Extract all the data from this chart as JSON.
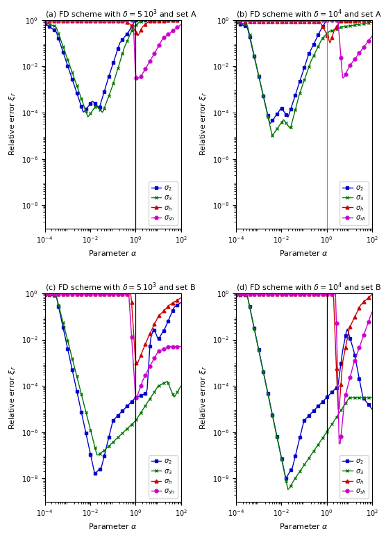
{
  "titles": [
    "(a) FD scheme with $\\delta = 5\\,10^3$ and set A",
    "(b) FD scheme with $\\delta = 10^4$ and set A",
    "(c) FD scheme with $\\delta = 5\\,10^3$ and set B",
    "(d) FD scheme with $\\delta = 10^4$ and set B"
  ],
  "xlabel": "Parameter $\\alpha$",
  "ylabel": "Relative error $\\xi_r$",
  "xlim_log": [
    -4,
    2
  ],
  "ylim_log": [
    -9,
    0
  ],
  "vline_x": 1.0,
  "legend_labels": [
    "$\\sigma_2$",
    "$\\sigma_3$",
    "$\\sigma_h$",
    "$\\sigma_{sh}$"
  ],
  "colors": [
    "#0000cc",
    "#007700",
    "#cc0000",
    "#cc00cc"
  ],
  "markers": [
    "s",
    "x",
    "^",
    "o"
  ],
  "markersize": 3.5,
  "markevery": 5,
  "linewidth": 1.0,
  "background_color": "#ffffff",
  "vline_colors": [
    "#000000",
    "#888888",
    "#000000",
    "#000000"
  ]
}
